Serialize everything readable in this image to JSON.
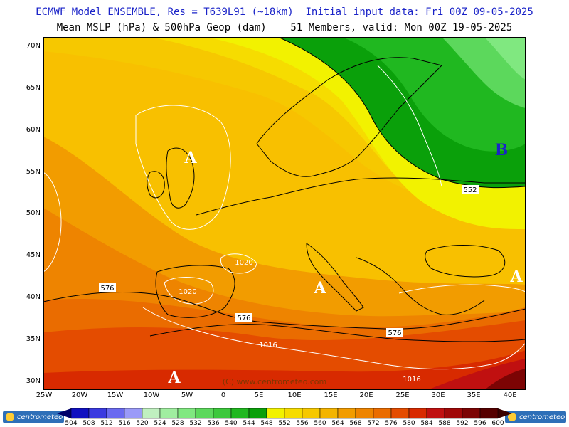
{
  "header": {
    "title_line1": "ECMWF Model ENSEMBLE, Res = T639L91 (~18km)  Initial input data: Fri 00Z 09-05-2025",
    "title_line2": "Mean MSLP (hPa) & 500hPa Geop (dam)    51 Members, valid: Mon 00Z 19-05-2025"
  },
  "axes": {
    "lat_labels": [
      "70N",
      "65N",
      "60N",
      "55N",
      "50N",
      "45N",
      "40N",
      "35N",
      "30N"
    ],
    "lon_labels": [
      "25W",
      "20W",
      "15W",
      "10W",
      "5W",
      "0",
      "5E",
      "10E",
      "15E",
      "20E",
      "25E",
      "30E",
      "35E",
      "40E"
    ]
  },
  "map": {
    "contour_labels": {
      "geop_552": "552",
      "geop_576_a": "576",
      "geop_576_b": "576",
      "geop_576_c": "576",
      "mslp_1020_a": "1020",
      "mslp_1020_b": "1020",
      "mslp_1016_a": "1016",
      "mslp_1016_b": "1016"
    },
    "pressure_centers": {
      "high_uk": "A",
      "high_med": "A",
      "high_east": "A",
      "high_morocco": "A",
      "low_russia": "B"
    },
    "watermark": "(C) www.centrometeo.com"
  },
  "legend": {
    "values": [
      "504",
      "508",
      "512",
      "516",
      "520",
      "524",
      "528",
      "532",
      "536",
      "540",
      "544",
      "548",
      "552",
      "556",
      "560",
      "564",
      "568",
      "572",
      "576",
      "580",
      "584",
      "588",
      "592",
      "596",
      "600"
    ],
    "colors": [
      "#00008b",
      "#1010c0",
      "#3a3ae0",
      "#6a6af0",
      "#9a9af8",
      "#c0f0c0",
      "#a0eea0",
      "#80e880",
      "#5cd85c",
      "#3cc83c",
      "#20b820",
      "#0aa00a",
      "#f2f200",
      "#f6dc00",
      "#f6c800",
      "#f4b400",
      "#f29c00",
      "#ee8400",
      "#ea6c00",
      "#e44c00",
      "#d82a00",
      "#c01010",
      "#a00808",
      "#7c0404",
      "#560000"
    ]
  },
  "branding": {
    "logo_text": "centrometeo"
  }
}
